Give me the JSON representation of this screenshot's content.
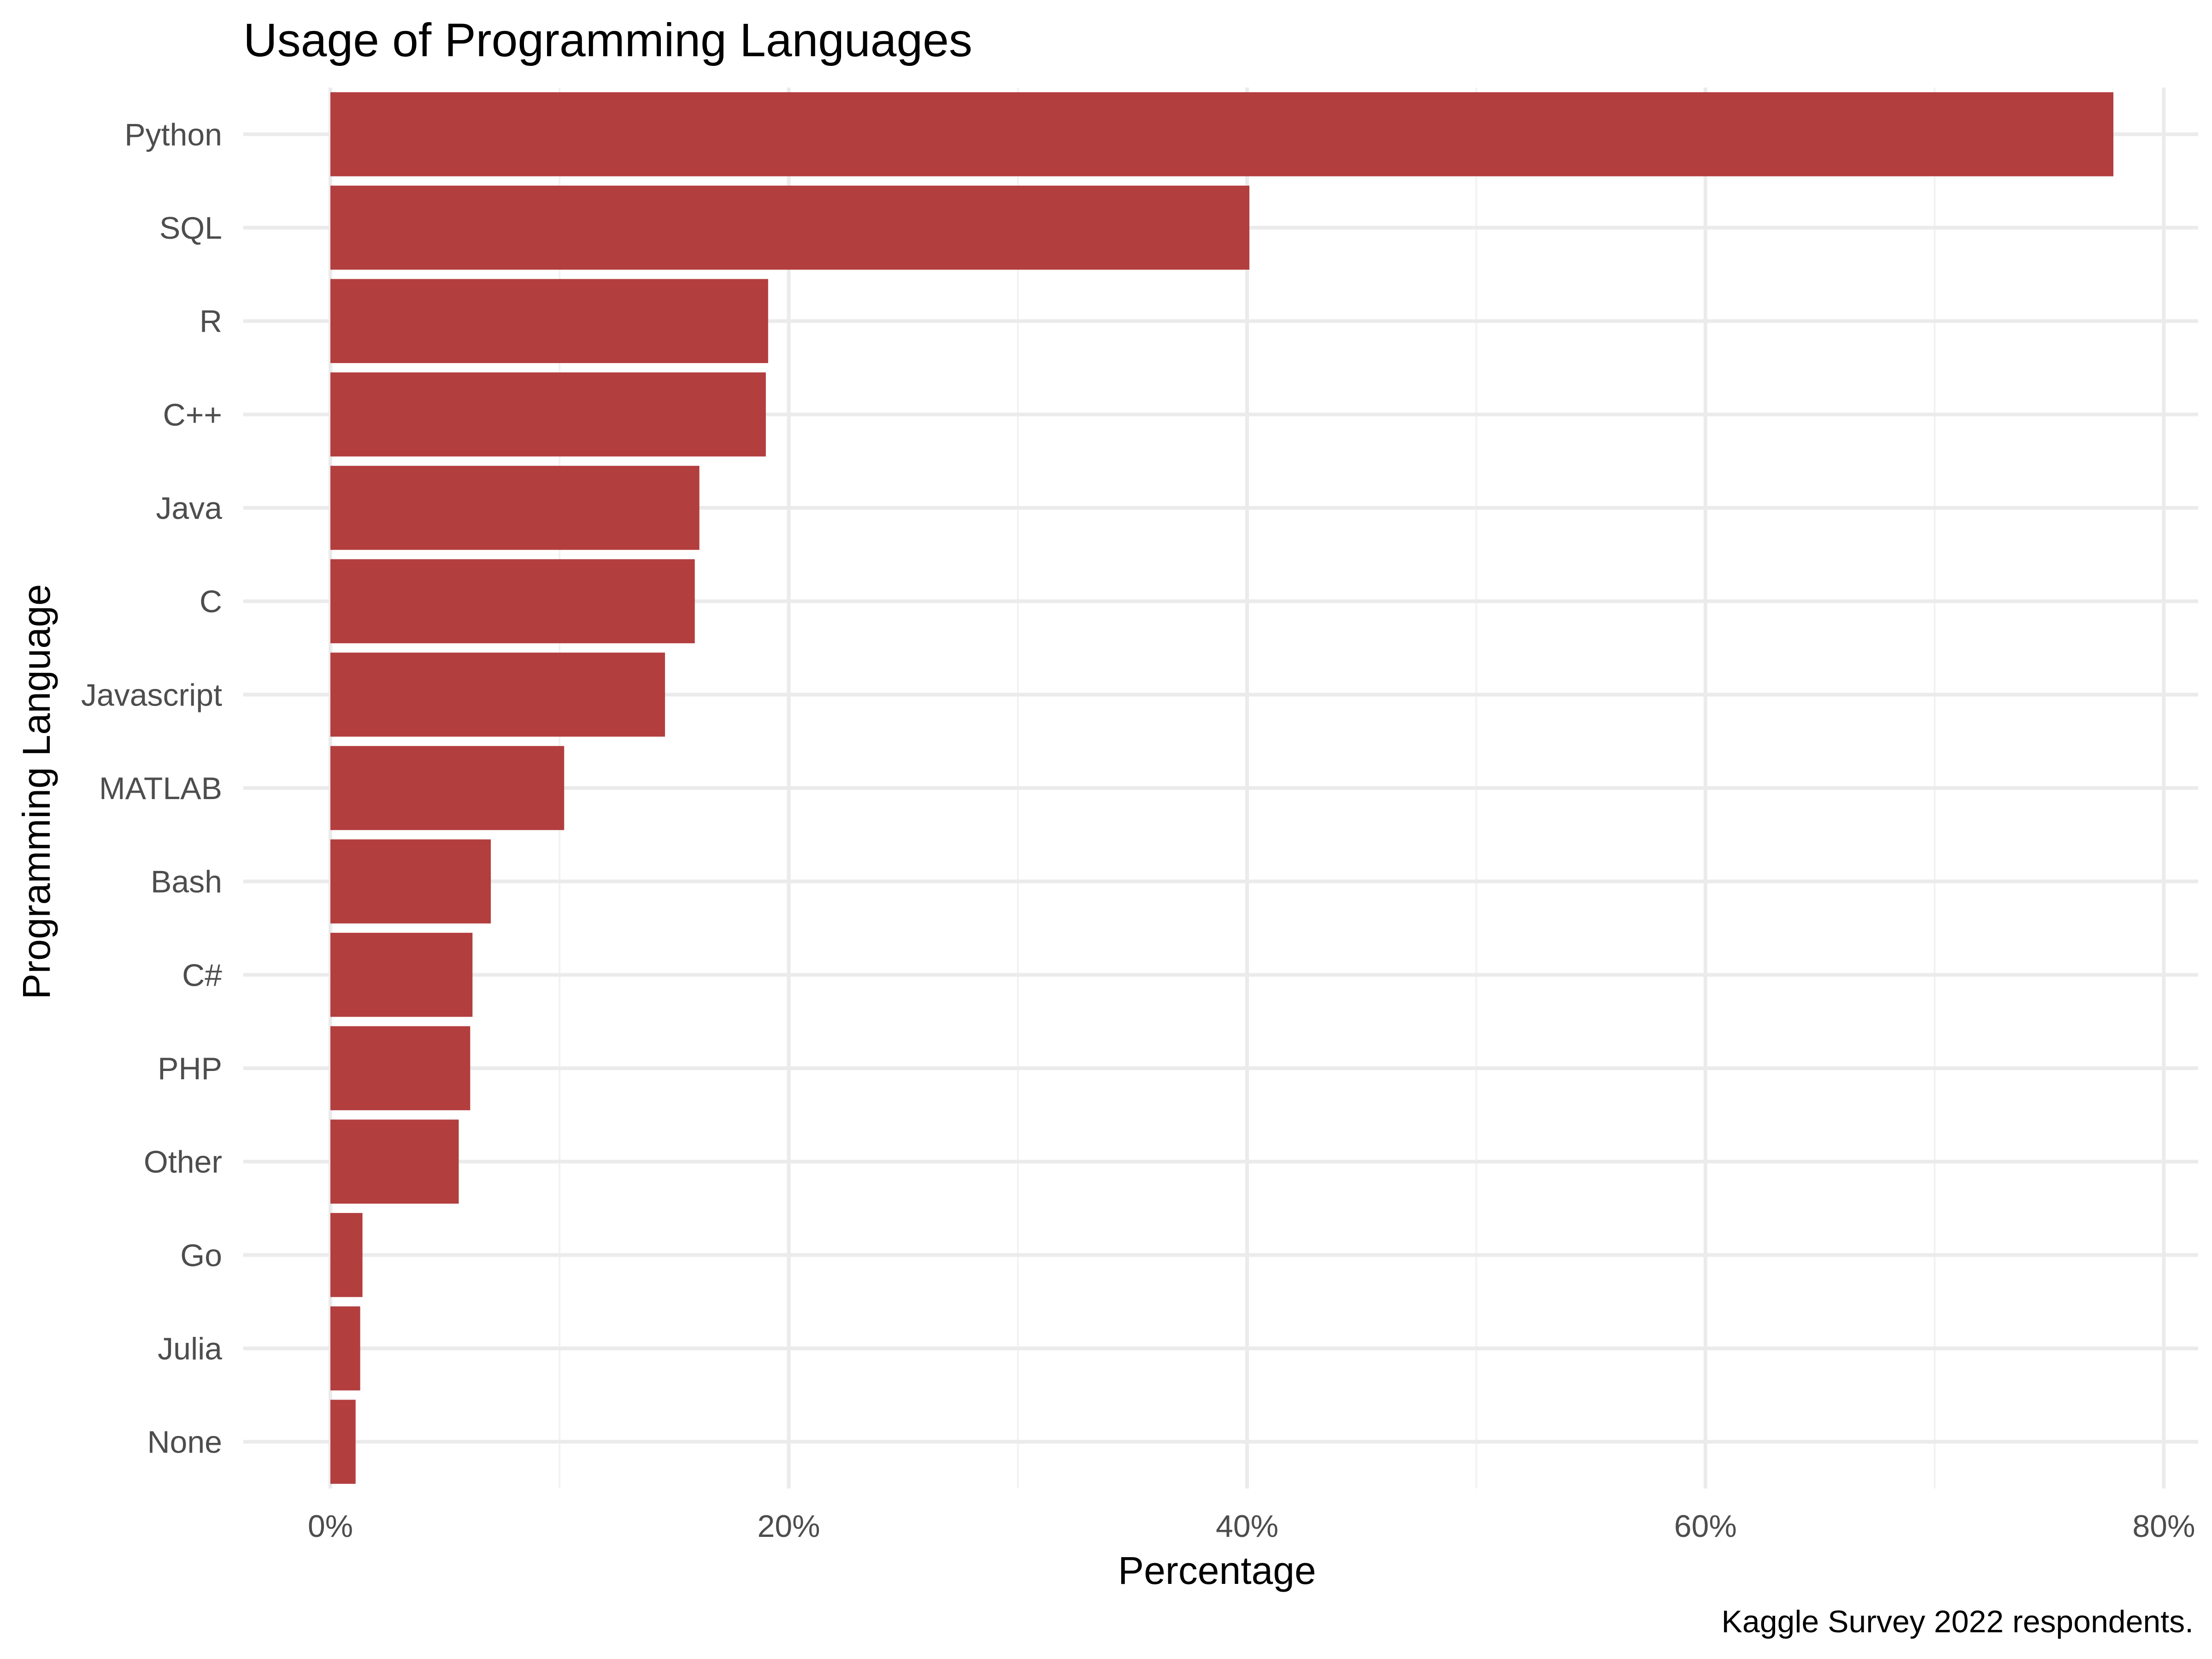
{
  "chart_data": {
    "type": "bar",
    "orientation": "horizontal",
    "title": "Usage of Programming Languages",
    "xlabel": "Percentage",
    "ylabel": "Programming Language",
    "caption": "Kaggle Survey 2022 respondents.",
    "categories": [
      "Python",
      "SQL",
      "R",
      "C++",
      "Java",
      "C",
      "Javascript",
      "MATLAB",
      "Bash",
      "C#",
      "PHP",
      "Other",
      "Go",
      "Julia",
      "None"
    ],
    "values": [
      77.8,
      40.1,
      19.1,
      19.0,
      16.1,
      15.9,
      14.6,
      10.2,
      7.0,
      6.2,
      6.1,
      5.6,
      1.4,
      1.3,
      1.1
    ],
    "xlim": [
      -3.8,
      81.5
    ],
    "x_ticks": [
      0,
      20,
      40,
      60,
      80
    ],
    "x_tick_labels": [
      "0%",
      "20%",
      "40%",
      "60%",
      "80%"
    ],
    "grid": true,
    "bar_color": "#B33E3E"
  }
}
